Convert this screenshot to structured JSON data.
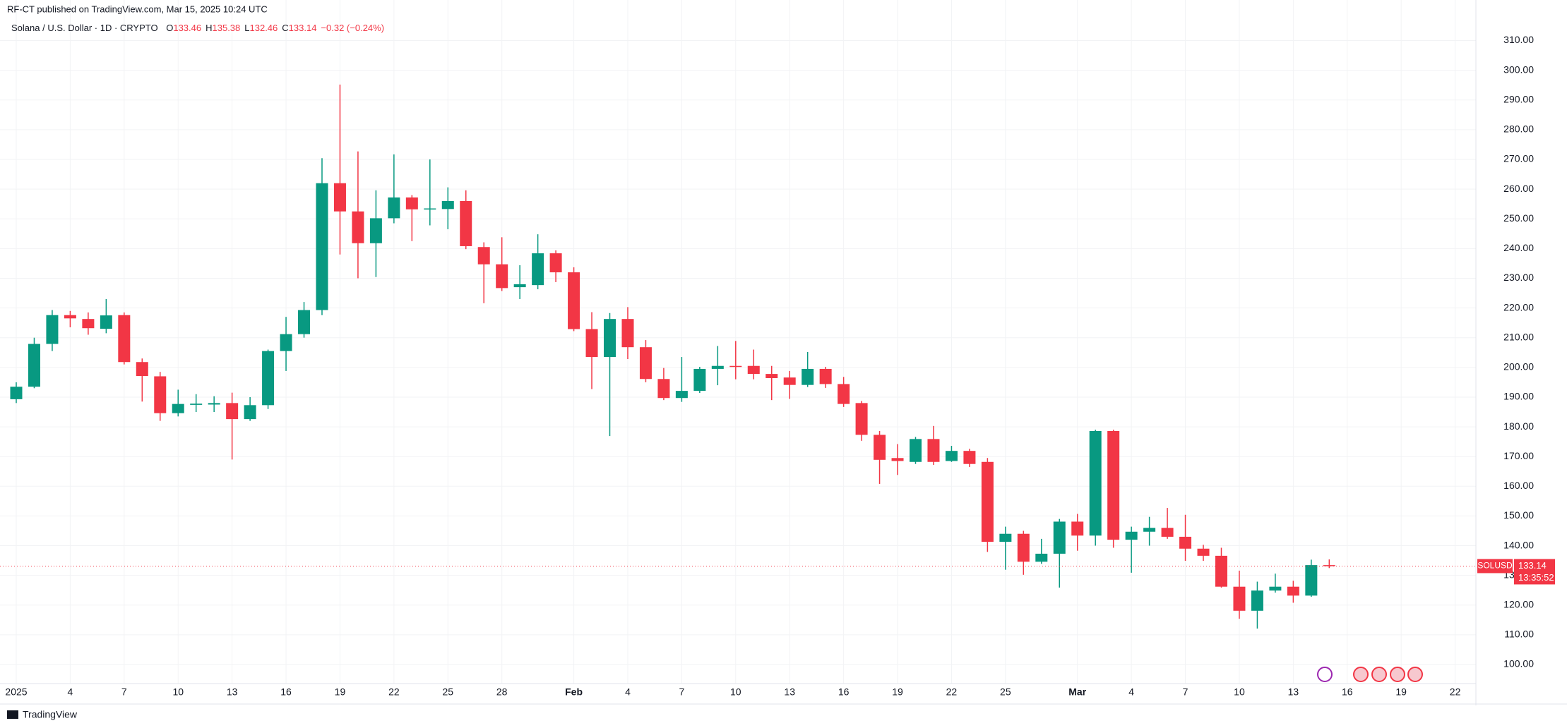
{
  "header": {
    "published": "RF-CT published on TradingView.com, Mar 15, 2025 10:24 UTC",
    "footer_brand": "TradingView"
  },
  "chart_data": {
    "type": "candlestick",
    "title": "Solana / U.S. Dollar · 1D · CRYPTO",
    "legend": [
      {
        "label": "O",
        "value": "133.46"
      },
      {
        "label": "H",
        "value": "135.38"
      },
      {
        "label": "L",
        "value": "132.46"
      },
      {
        "label": "C",
        "value": "133.14"
      }
    ],
    "change": "−0.32 (−0.24%)",
    "price_tag": {
      "symbol": "SOLUSD",
      "price": "133.14",
      "countdown": "13:35:52"
    },
    "up_color": "#089981",
    "down_color": "#f23645",
    "categories": [
      "2025",
      null,
      null,
      "4",
      null,
      null,
      "7",
      null,
      null,
      "10",
      null,
      null,
      "13",
      null,
      null,
      "16",
      null,
      null,
      "19",
      null,
      null,
      "22",
      null,
      null,
      "25",
      null,
      null,
      "28",
      null,
      null,
      null,
      "Feb",
      null,
      null,
      "4",
      null,
      null,
      "7",
      null,
      null,
      "10",
      null,
      null,
      "13",
      null,
      null,
      "16",
      null,
      null,
      "19",
      null,
      null,
      "22",
      null,
      null,
      "25",
      null,
      null,
      null,
      "Mar",
      null,
      null,
      "4",
      null,
      null,
      "7",
      null,
      null,
      "10",
      null,
      null,
      "13",
      null,
      null,
      "16",
      null,
      null,
      "19",
      null,
      null,
      "22"
    ],
    "open": [
      189.3,
      193.5,
      207.9,
      217.6,
      216.3,
      213.0,
      217.6,
      201.8,
      197.0,
      184.6,
      187.4,
      187.5,
      188.0,
      182.6,
      187.3,
      205.5,
      211.2,
      219.3,
      262.0,
      252.5,
      241.8,
      250.2,
      257.2,
      253.2,
      253.3,
      256.0,
      240.5,
      234.7,
      227.0,
      227.7,
      238.4,
      232.0,
      212.9,
      203.5,
      216.3,
      206.8,
      196.1,
      189.7,
      192.1,
      199.5,
      200.5,
      200.5,
      197.8,
      196.6,
      194.1,
      199.5,
      194.4,
      188.0,
      177.3,
      169.5,
      168.2,
      175.9,
      168.5,
      171.9,
      168.2,
      141.3,
      144.0,
      134.6,
      137.3,
      148.1,
      143.4,
      178.6,
      142.0,
      144.7,
      146.0,
      143.0,
      139.0,
      136.6,
      126.2,
      118.1,
      124.9,
      126.2,
      123.2,
      133.46,
      null,
      null,
      null,
      null,
      null,
      null,
      null
    ],
    "high": [
      195.0,
      210.0,
      219.3,
      219.0,
      218.5,
      223.0,
      218.5,
      203.0,
      198.5,
      192.5,
      191.0,
      190.3,
      191.5,
      190.0,
      206.0,
      217.0,
      222.0,
      270.4,
      295.2,
      272.7,
      259.6,
      271.7,
      258.0,
      270.0,
      260.6,
      259.6,
      242.1,
      243.8,
      234.4,
      244.8,
      239.4,
      233.7,
      218.6,
      218.3,
      220.3,
      209.2,
      199.8,
      203.5,
      200.2,
      207.2,
      208.9,
      206.0,
      200.5,
      198.8,
      205.2,
      200.2,
      196.8,
      188.7,
      178.6,
      174.2,
      176.6,
      180.3,
      173.6,
      172.6,
      169.5,
      146.4,
      145.0,
      142.3,
      149.0,
      150.7,
      179.0,
      179.0,
      146.4,
      149.7,
      152.7,
      150.4,
      140.3,
      139.3,
      131.6,
      127.9,
      130.6,
      128.2,
      135.3,
      135.38,
      null,
      null,
      null,
      null,
      null,
      null,
      null
    ],
    "low": [
      188.0,
      193.0,
      205.5,
      213.5,
      211.0,
      211.5,
      201.0,
      188.5,
      182.0,
      183.5,
      185.0,
      185.0,
      169.0,
      182.0,
      186.0,
      198.8,
      210.0,
      217.6,
      238.0,
      230.0,
      230.4,
      248.5,
      242.5,
      247.8,
      246.5,
      239.8,
      221.6,
      225.7,
      223.0,
      226.3,
      228.7,
      212.2,
      192.7,
      176.9,
      202.8,
      195.0,
      189.0,
      188.4,
      191.4,
      194.0,
      196.0,
      196.0,
      189.0,
      189.4,
      193.4,
      193.1,
      186.7,
      175.3,
      160.8,
      163.8,
      167.5,
      167.2,
      168.2,
      166.5,
      137.9,
      131.9,
      130.2,
      133.9,
      125.9,
      138.3,
      140.0,
      139.3,
      130.9,
      140.0,
      142.3,
      134.9,
      134.9,
      125.9,
      115.4,
      112.1,
      124.2,
      120.8,
      122.8,
      132.46,
      null,
      null,
      null,
      null,
      null,
      null,
      null
    ],
    "close": [
      193.5,
      207.9,
      217.6,
      216.5,
      213.2,
      217.5,
      201.8,
      197.1,
      184.6,
      187.7,
      187.8,
      188.0,
      182.6,
      187.3,
      205.5,
      211.2,
      219.3,
      262.0,
      252.5,
      241.8,
      250.2,
      257.2,
      253.2,
      253.5,
      256.0,
      240.8,
      234.7,
      226.7,
      228.0,
      238.4,
      232.0,
      212.9,
      203.5,
      216.3,
      206.8,
      196.1,
      189.7,
      192.1,
      199.5,
      200.5,
      200.4,
      197.8,
      196.4,
      194.1,
      199.5,
      194.4,
      187.7,
      177.3,
      168.9,
      168.5,
      175.9,
      168.2,
      171.9,
      167.5,
      141.3,
      144.0,
      134.6,
      137.3,
      148.1,
      143.4,
      178.6,
      142.0,
      144.7,
      146.0,
      143.0,
      139.0,
      136.6,
      126.2,
      118.1,
      124.9,
      126.2,
      123.2,
      133.46,
      133.14,
      null,
      null,
      null,
      null,
      null,
      null,
      null
    ],
    "ylim": [
      93.6,
      317
    ],
    "yticks": [
      {
        "value": 100,
        "label": "100.00"
      },
      {
        "value": 110,
        "label": "110.00"
      },
      {
        "value": 120,
        "label": "120.00"
      },
      {
        "value": 130,
        "label": "130.00"
      },
      {
        "value": 140,
        "label": "140.00"
      },
      {
        "value": 150,
        "label": "150.00"
      },
      {
        "value": 160,
        "label": "160.00"
      },
      {
        "value": 170,
        "label": "170.00"
      },
      {
        "value": 180,
        "label": "180.00"
      },
      {
        "value": 190,
        "label": "190.00"
      },
      {
        "value": 200,
        "label": "200.00"
      },
      {
        "value": 210,
        "label": "210.00"
      },
      {
        "value": 220,
        "label": "220.00"
      },
      {
        "value": 230,
        "label": "230.00"
      },
      {
        "value": 240,
        "label": "240.00"
      },
      {
        "value": 250,
        "label": "250.00"
      },
      {
        "value": 260,
        "label": "260.00"
      },
      {
        "value": 270,
        "label": "270.00"
      },
      {
        "value": 280,
        "label": "280.00"
      },
      {
        "value": 290,
        "label": "290.00"
      },
      {
        "value": 300,
        "label": "300.00"
      },
      {
        "value": 310,
        "label": "310.00"
      }
    ],
    "grid": true
  }
}
